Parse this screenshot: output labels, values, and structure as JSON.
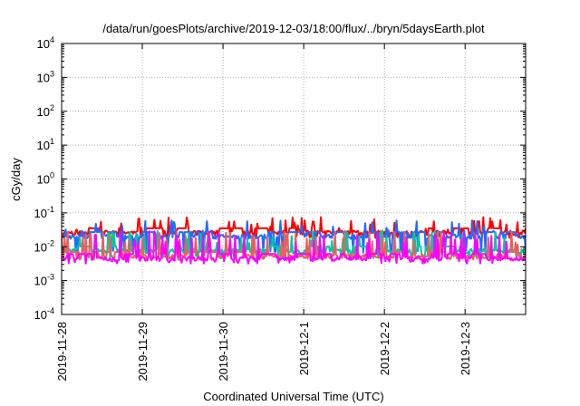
{
  "chart_data": {
    "type": "line",
    "title": "/data/run/goesPlots/archive/2019-12-03/18:00/flux/../bryn/5daysEarth.plot",
    "xlabel": "Coordinated Universal Time (UTC)",
    "ylabel": "cGy/day",
    "yscale": "log",
    "ylim": [
      0.0001,
      10000
    ],
    "y_ticks": [
      {
        "value": 0.0001,
        "base": "10",
        "exp": "-4"
      },
      {
        "value": 0.001,
        "base": "10",
        "exp": "-3"
      },
      {
        "value": 0.01,
        "base": "10",
        "exp": "-2"
      },
      {
        "value": 0.1,
        "base": "10",
        "exp": "-1"
      },
      {
        "value": 1,
        "base": "10",
        "exp": "0"
      },
      {
        "value": 10,
        "base": "10",
        "exp": "1"
      },
      {
        "value": 100,
        "base": "10",
        "exp": "2"
      },
      {
        "value": 1000,
        "base": "10",
        "exp": "3"
      },
      {
        "value": 10000,
        "base": "10",
        "exp": "4"
      }
    ],
    "xlim": [
      "2019-11-28T00:00",
      "2019-12-03T18:00"
    ],
    "x_ticks": [
      "2019-11-28",
      "2019-11-29",
      "2019-11-30",
      "2019-12-1",
      "2019-12-2",
      "2019-12-3"
    ],
    "grid": true,
    "series": [
      {
        "color": "#ff0000",
        "level": 0.026,
        "spike": 0.075,
        "dip": 0.02,
        "seed": 11
      },
      {
        "color": "#1f6cff",
        "level": 0.02,
        "spike": 0.06,
        "dip": 0.007,
        "seed": 23
      },
      {
        "color": "#00c8a0",
        "level": 0.0075,
        "spike": 0.03,
        "dip": 0.005,
        "seed": 37
      },
      {
        "color": "#e86060",
        "level": 0.0052,
        "spike": 0.028,
        "dip": 0.0045,
        "seed": 41
      },
      {
        "color": "#ff00ff",
        "level": 0.0045,
        "spike": 0.03,
        "dip": 0.0035,
        "seed": 53
      }
    ]
  }
}
